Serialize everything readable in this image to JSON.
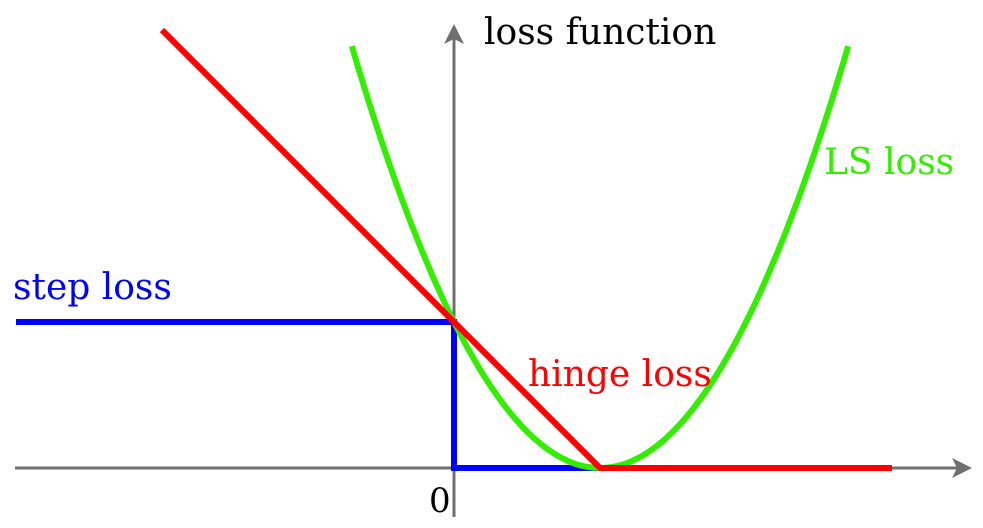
{
  "chart_data": {
    "type": "line",
    "title": "",
    "ylabel": "loss function",
    "xlabel": "",
    "xlim": [
      -3,
      3.5
    ],
    "ylim": [
      0,
      3
    ],
    "grid": false,
    "x_tick_labels": [
      {
        "x": 0,
        "label": "0"
      }
    ],
    "series": [
      {
        "name": "step loss",
        "color": "#0000ff",
        "points": [
          [
            -3,
            1
          ],
          [
            0,
            1
          ],
          [
            0,
            0
          ],
          [
            1,
            0
          ]
        ]
      },
      {
        "name": "hinge loss",
        "color": "#ff0000",
        "points": [
          [
            -2,
            3
          ],
          [
            1,
            0
          ],
          [
            3,
            0
          ]
        ]
      },
      {
        "name": "LS loss",
        "color": "#33ee00",
        "function": "(1-x)^2",
        "points": [
          [
            -0.7,
            2.89
          ],
          [
            -0.5,
            2.25
          ],
          [
            0,
            1
          ],
          [
            0.5,
            0.25
          ],
          [
            1,
            0
          ],
          [
            1.5,
            0.25
          ],
          [
            2,
            1
          ],
          [
            2.5,
            2.25
          ],
          [
            2.7,
            2.89
          ]
        ]
      }
    ]
  }
}
